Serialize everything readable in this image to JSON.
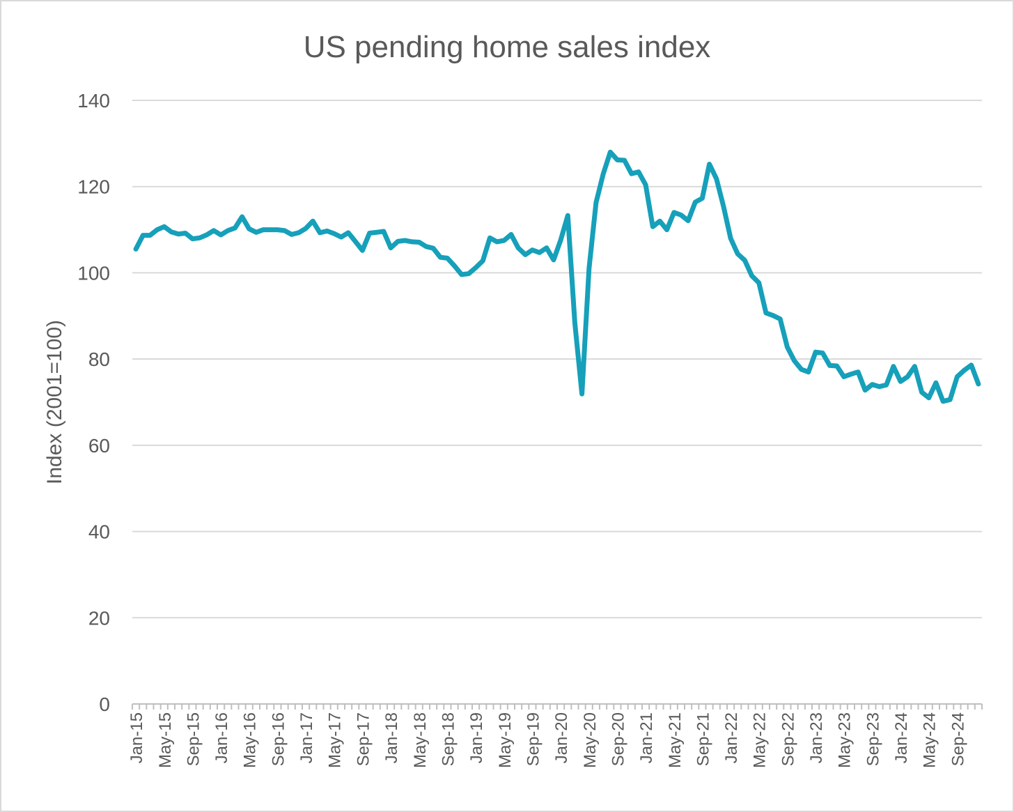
{
  "chart_data": {
    "type": "line",
    "title": "US pending home sales index",
    "xlabel": "",
    "ylabel": "Index (2001=100)",
    "ylim": [
      0,
      140
    ],
    "yticks": [
      0,
      20,
      40,
      60,
      80,
      100,
      120,
      140
    ],
    "grid": true,
    "legend": "none",
    "x_tick_labels": [
      "Jan-15",
      "May-15",
      "Sep-15",
      "Jan-16",
      "May-16",
      "Sep-16",
      "Jan-17",
      "May-17",
      "Sep-17",
      "Jan-18",
      "May-18",
      "Sep-18",
      "Jan-19",
      "May-19",
      "Sep-19",
      "Jan-20",
      "May-20",
      "Sep-20",
      "Jan-21",
      "May-21",
      "Sep-21",
      "Jan-22",
      "May-22",
      "Sep-22",
      "Jan-23",
      "May-23",
      "Sep-23",
      "Jan-24",
      "May-24",
      "Sep-24"
    ],
    "x_start": "Jan-15",
    "x_end": "Dec-24",
    "series": [
      {
        "color": "#16a0ba",
        "values": [
          105.5,
          108.7,
          108.7,
          110,
          110.7,
          109.5,
          109,
          109.2,
          107.9,
          108.1,
          108.8,
          109.8,
          108.8,
          109.8,
          110.4,
          113,
          110.2,
          109.4,
          110,
          110,
          110,
          109.8,
          108.9,
          109.3,
          110.3,
          112,
          109.3,
          109.7,
          109.1,
          108.3,
          109.3,
          107.3,
          105.2,
          109.2,
          109.4,
          109.6,
          105.8,
          107.3,
          107.5,
          107.2,
          107.1,
          106.1,
          105.7,
          103.6,
          103.4,
          101.6,
          99.6,
          99.8,
          101.2,
          102.8,
          108.1,
          107.2,
          107.5,
          108.9,
          105.8,
          104.2,
          105.3,
          104.7,
          105.8,
          103,
          107.6,
          113.3,
          88.4,
          71.9,
          101,
          116.3,
          122.9,
          128,
          126.2,
          126.1,
          123,
          123.4,
          120.4,
          110.7,
          112,
          110,
          114,
          113.4,
          112.1,
          116.4,
          117.3,
          125.2,
          121.8,
          115.4,
          108,
          104.4,
          102.9,
          99.3,
          97.7,
          90.7,
          90.1,
          89.3,
          82.8,
          79.6,
          77.6,
          77,
          81.6,
          81.4,
          78.5,
          78.4,
          75.9,
          76.5,
          77,
          72.8,
          74.1,
          73.6,
          74,
          78.3,
          74.8,
          75.9,
          78.3,
          72.3,
          71,
          74.5,
          70.2,
          70.6,
          75.9,
          77.4,
          78.6,
          74.2
        ]
      }
    ]
  }
}
